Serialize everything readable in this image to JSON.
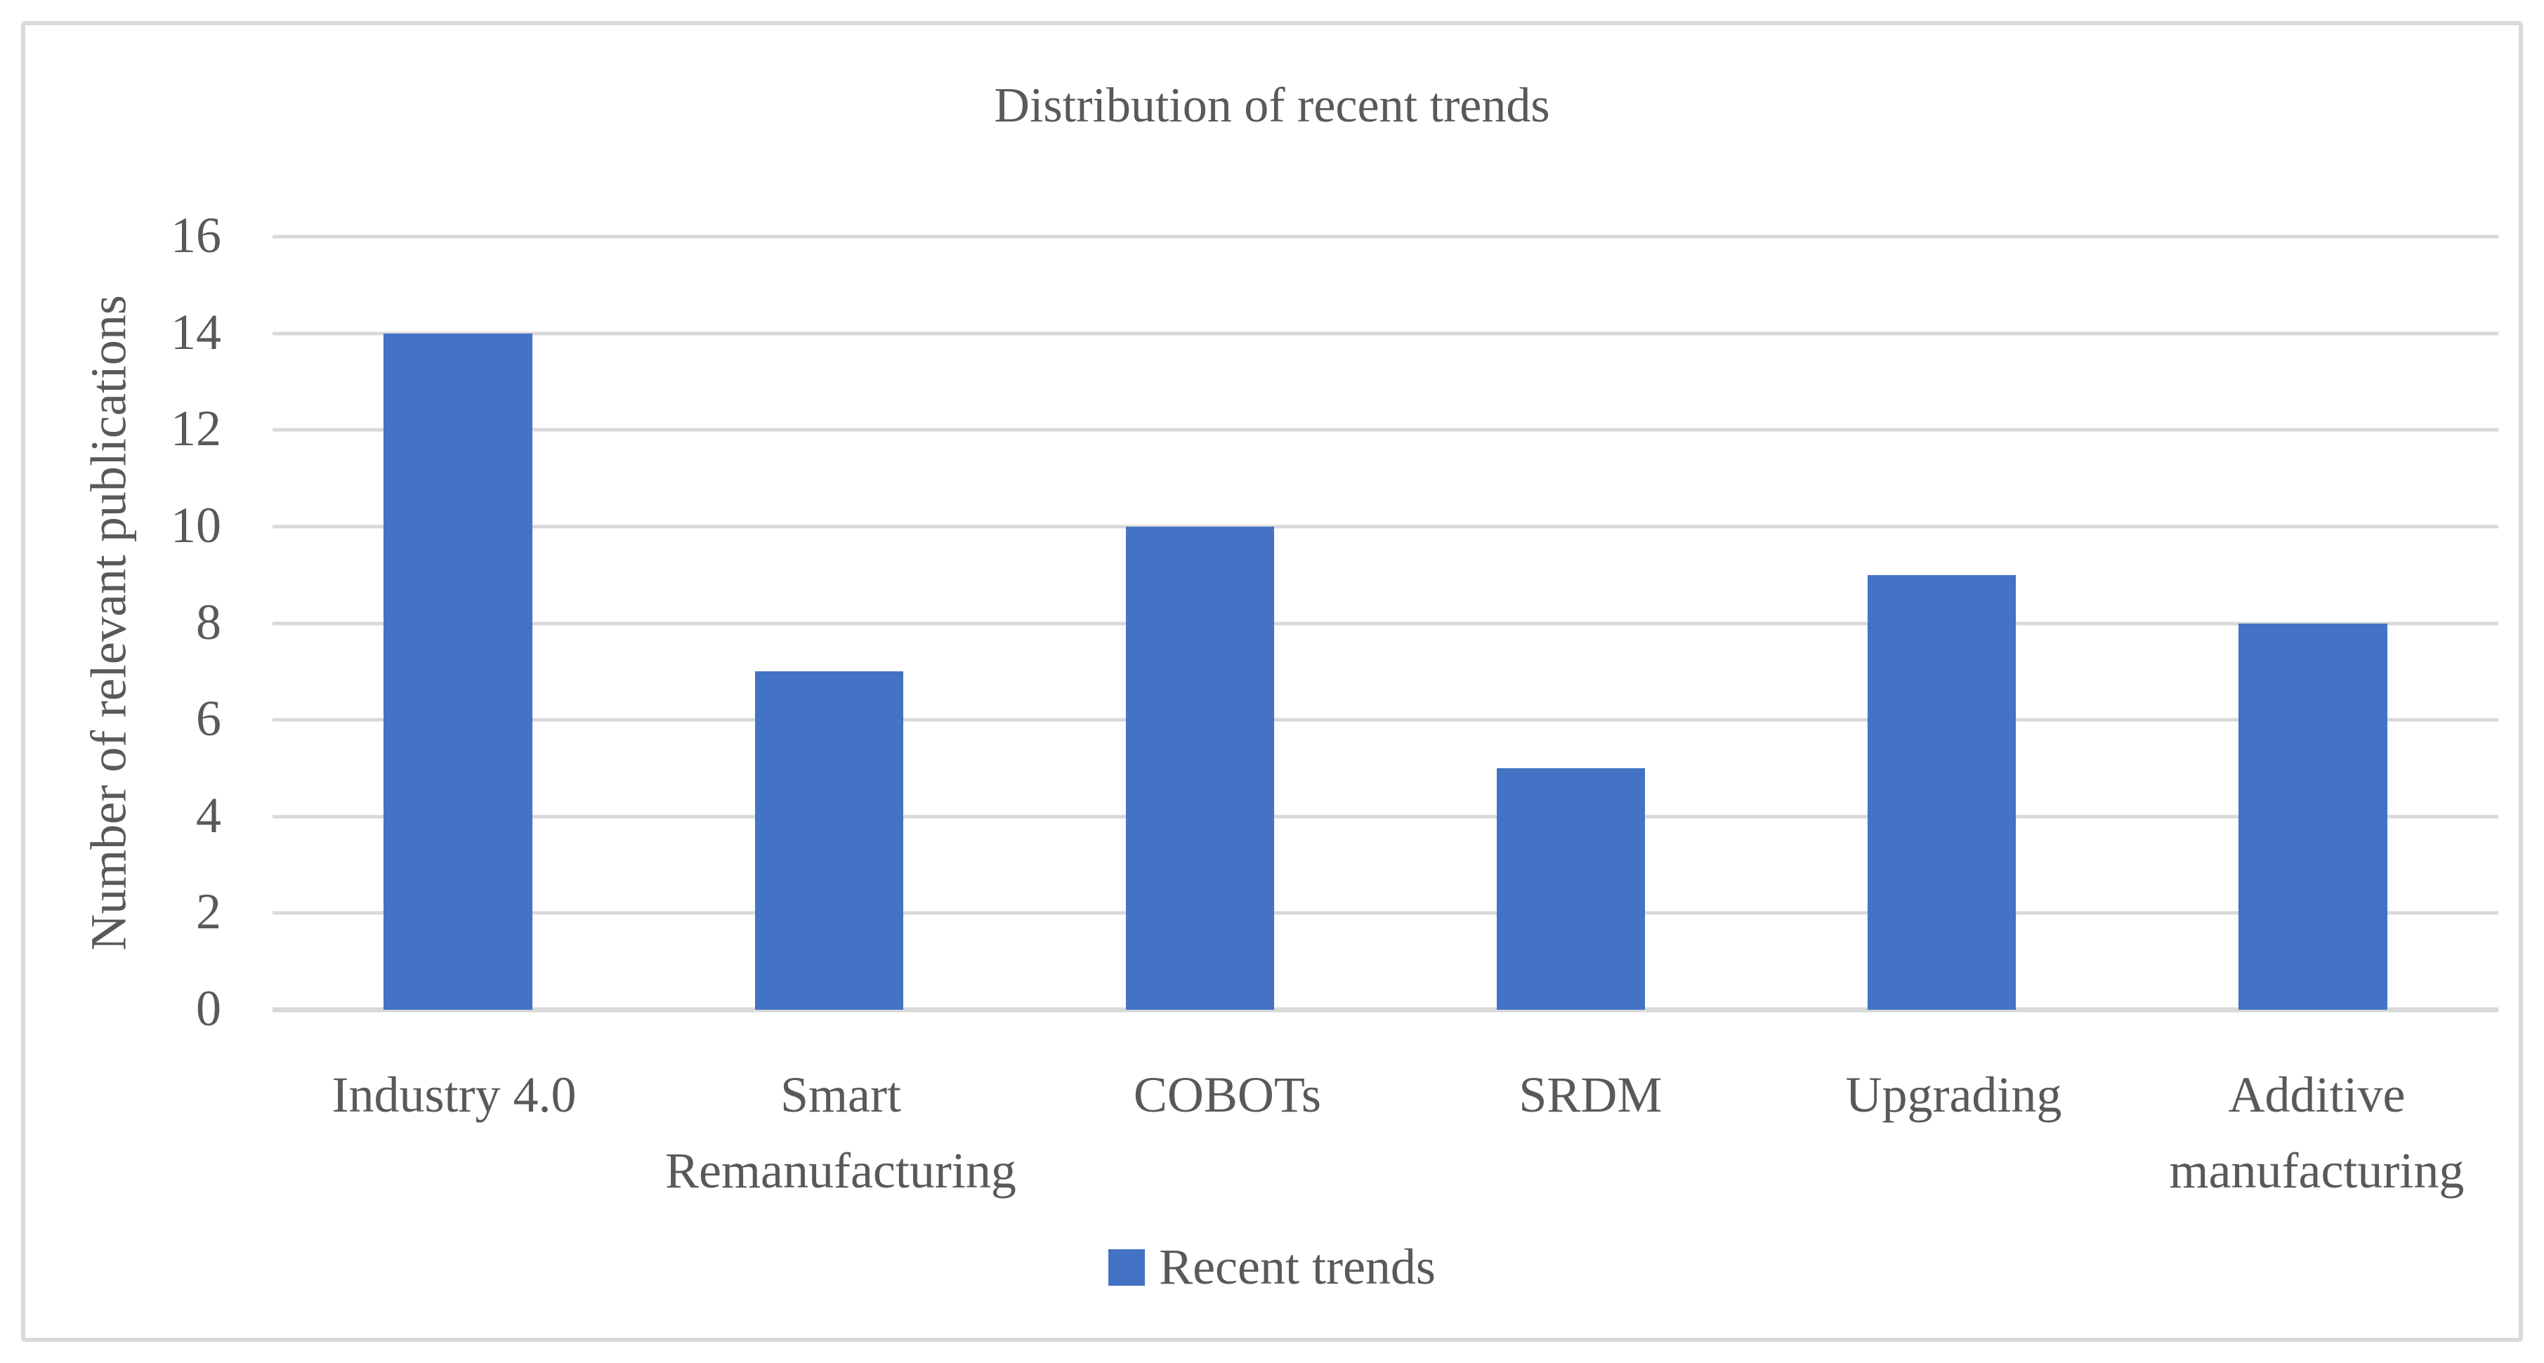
{
  "chart_data": {
    "type": "bar",
    "title": "Distribution of recent trends",
    "xlabel": "",
    "ylabel": "Number of relevant publications",
    "categories": [
      "Industry 4.0",
      "Smart Remanufacturing",
      "COBOTs",
      "SRDM",
      "Upgrading",
      "Additive manufacturing"
    ],
    "series": [
      {
        "name": "Recent trends",
        "values": [
          14,
          7,
          10,
          5,
          9,
          8
        ]
      }
    ],
    "ylim": [
      0,
      16
    ],
    "ytick_step": 2,
    "ytick_labels": [
      "0",
      "2",
      "4",
      "6",
      "8",
      "10",
      "12",
      "14",
      "16"
    ],
    "grid": true,
    "legend": {
      "label": "Recent trends",
      "position": "bottom"
    },
    "colors": {
      "bar": "#4472C4",
      "gridline": "#D9D9D9",
      "text": "#595959",
      "frame_border": "#D9D9D9",
      "background": "#FFFFFF"
    }
  }
}
